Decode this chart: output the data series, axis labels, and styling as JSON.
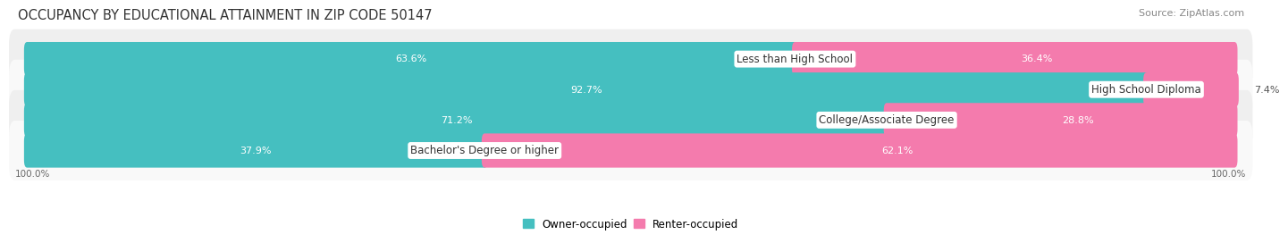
{
  "title": "OCCUPANCY BY EDUCATIONAL ATTAINMENT IN ZIP CODE 50147",
  "source": "Source: ZipAtlas.com",
  "categories": [
    "Less than High School",
    "High School Diploma",
    "College/Associate Degree",
    "Bachelor's Degree or higher"
  ],
  "owner_pct": [
    63.6,
    92.7,
    71.2,
    37.9
  ],
  "renter_pct": [
    36.4,
    7.4,
    28.8,
    62.1
  ],
  "owner_color": "#45bfc0",
  "renter_color": "#f47bad",
  "row_bg_colors": [
    "#efefef",
    "#f9f9f9"
  ],
  "axis_label_left": "100.0%",
  "axis_label_right": "100.0%",
  "title_fontsize": 10.5,
  "source_fontsize": 8,
  "legend_fontsize": 8.5,
  "bar_label_fontsize": 8,
  "category_fontsize": 8.5,
  "label_dark_color": "#555555"
}
